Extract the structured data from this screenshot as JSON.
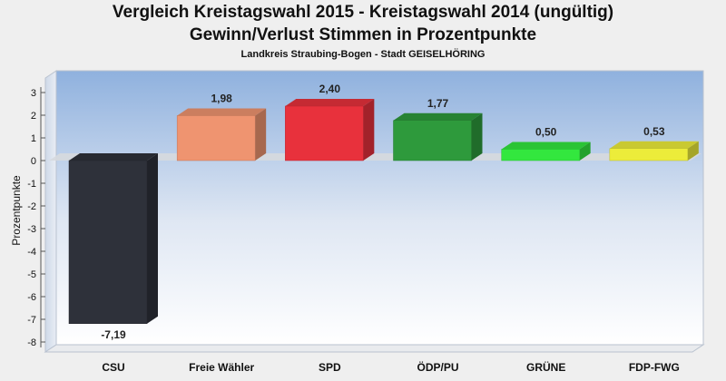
{
  "chart_data": {
    "type": "bar",
    "title": "Vergleich Kreistagswahl 2015 - Kreistagswahl 2014 (ungültig)",
    "subtitle": "Gewinn/Verlust Stimmen in Prozentpunkte",
    "subtitle2": "Landkreis Straubing-Bogen - Stadt GEISELHÖRING",
    "xlabel": "",
    "ylabel": "Prozentpunkte",
    "ylim": [
      -8,
      3
    ],
    "yticks": [
      "3",
      "2",
      "1",
      "0",
      "-1",
      "-2",
      "-3",
      "-4",
      "-5",
      "-6",
      "-7",
      "-8"
    ],
    "categories": [
      "CSU",
      "Freie Wähler",
      "SPD",
      "ÖDP/PU",
      "GRÜNE",
      "FDP-FWG"
    ],
    "values": [
      -7.19,
      1.98,
      2.4,
      1.77,
      0.5,
      0.53
    ],
    "value_labels": [
      "-7,19",
      "1,98",
      "2,40",
      "1,77",
      "0,50",
      "0,53"
    ],
    "colors": [
      "#2e313a",
      "#ef9470",
      "#e8313c",
      "#2e9a3c",
      "#33e73e",
      "#ecec3a"
    ],
    "grid": false,
    "legend": "none"
  }
}
